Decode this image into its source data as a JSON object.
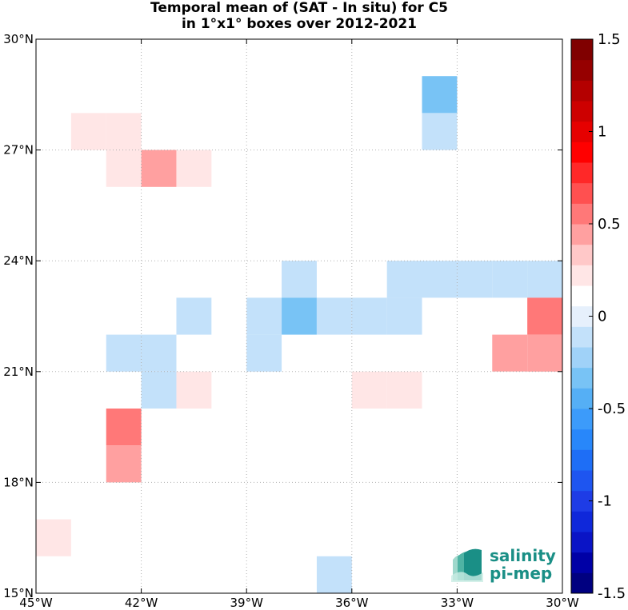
{
  "chart_data": {
    "type": "heatmap",
    "title_line1": "Temporal mean of (SAT - In situ) for C5",
    "title_line2": "in 1°x1° boxes over 2012-2021",
    "lon_range": [
      -45,
      -30
    ],
    "lat_range": [
      15,
      30
    ],
    "x_ticks": [
      {
        "value": -45,
        "label": "45°W"
      },
      {
        "value": -42,
        "label": "42°W"
      },
      {
        "value": -39,
        "label": "39°W"
      },
      {
        "value": -36,
        "label": "36°W"
      },
      {
        "value": -33,
        "label": "33°W"
      },
      {
        "value": -30,
        "label": "30°W"
      }
    ],
    "y_ticks": [
      {
        "value": 15,
        "label": "15°N"
      },
      {
        "value": 18,
        "label": "18°N"
      },
      {
        "value": 21,
        "label": "21°N"
      },
      {
        "value": 24,
        "label": "24°N"
      },
      {
        "value": 27,
        "label": "27°N"
      },
      {
        "value": 30,
        "label": "30°N"
      }
    ],
    "grid": true,
    "cells": [
      {
        "lon": -44,
        "lat": 27,
        "value": 0.2
      },
      {
        "lon": -43,
        "lat": 27,
        "value": 0.2
      },
      {
        "lon": -43,
        "lat": 26,
        "value": 0.2
      },
      {
        "lon": -42,
        "lat": 26,
        "value": 0.4
      },
      {
        "lon": -41,
        "lat": 26,
        "value": 0.2
      },
      {
        "lon": -34,
        "lat": 28,
        "value": -0.3
      },
      {
        "lon": -34,
        "lat": 27,
        "value": -0.15
      },
      {
        "lon": -38,
        "lat": 23,
        "value": -0.15
      },
      {
        "lon": -35,
        "lat": 23,
        "value": -0.15
      },
      {
        "lon": -34,
        "lat": 23,
        "value": -0.15
      },
      {
        "lon": -33,
        "lat": 23,
        "value": -0.15
      },
      {
        "lon": -32,
        "lat": 23,
        "value": -0.15
      },
      {
        "lon": -31,
        "lat": 23,
        "value": -0.15
      },
      {
        "lon": -41,
        "lat": 22,
        "value": -0.15
      },
      {
        "lon": -39,
        "lat": 22,
        "value": -0.15
      },
      {
        "lon": -38,
        "lat": 22,
        "value": -0.3
      },
      {
        "lon": -37,
        "lat": 22,
        "value": -0.15
      },
      {
        "lon": -36,
        "lat": 22,
        "value": -0.15
      },
      {
        "lon": -35,
        "lat": 22,
        "value": -0.15
      },
      {
        "lon": -30.999,
        "lat": 22,
        "value": 0.6
      },
      {
        "lon": -43,
        "lat": 21,
        "value": -0.15
      },
      {
        "lon": -42,
        "lat": 21,
        "value": -0.15
      },
      {
        "lon": -39,
        "lat": 21,
        "value": -0.15
      },
      {
        "lon": -32,
        "lat": 21,
        "value": 0.4
      },
      {
        "lon": -31,
        "lat": 21,
        "value": 0.4
      },
      {
        "lon": -42,
        "lat": 20,
        "value": -0.15
      },
      {
        "lon": -41,
        "lat": 20,
        "value": 0.2
      },
      {
        "lon": -36,
        "lat": 20,
        "value": 0.2
      },
      {
        "lon": -35,
        "lat": 20,
        "value": 0.2
      },
      {
        "lon": -32,
        "lat": 20,
        "value": 0.15
      },
      {
        "lon": -43,
        "lat": 19,
        "value": 0.6
      },
      {
        "lon": -43,
        "lat": 18,
        "value": 0.4
      },
      {
        "lon": -32,
        "lat": 18,
        "value": 0.15
      },
      {
        "lon": -45,
        "lat": 16,
        "value": 0.2
      },
      {
        "lon": -37,
        "lat": 15,
        "value": -0.15
      }
    ],
    "colorbar": {
      "min": -1.5,
      "max": 1.5,
      "ticks": [
        {
          "value": 1.5,
          "label": "1.5"
        },
        {
          "value": 1,
          "label": "1"
        },
        {
          "value": 0.5,
          "label": "0.5"
        },
        {
          "value": 0,
          "label": "0"
        },
        {
          "value": -0.5,
          "label": "-0.5"
        },
        {
          "value": -1,
          "label": "-1"
        },
        {
          "value": -1.5,
          "label": "-1.5"
        }
      ],
      "colors": [
        "#000080",
        "#0000a6",
        "#0a14c6",
        "#0f28da",
        "#1e3ce6",
        "#1e55f0",
        "#1e6ef6",
        "#2887fa",
        "#3c9bfa",
        "#55aff5",
        "#78c3f5",
        "#a0d2f8",
        "#c3e1fa",
        "#e6f0fc",
        "#ffffff",
        "#ffe6e6",
        "#ffc8c8",
        "#ffa0a0",
        "#ff7878",
        "#ff5050",
        "#ff2828",
        "#ff0000",
        "#e60000",
        "#cd0000",
        "#b40000",
        "#960000",
        "#800000"
      ]
    }
  },
  "logo": {
    "line1": "salinity",
    "line2": "pi-mep"
  }
}
